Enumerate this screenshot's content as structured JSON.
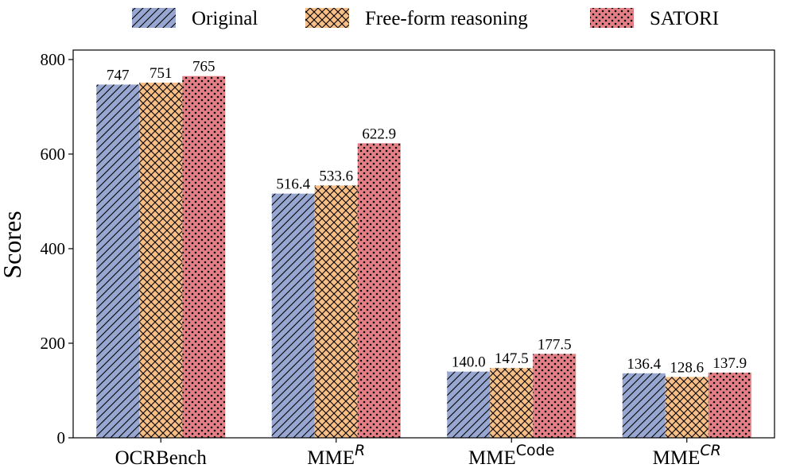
{
  "chart_data": {
    "type": "bar",
    "title": "",
    "xlabel": "",
    "ylabel": "Scores",
    "ylim": [
      0,
      820
    ],
    "yticks": [
      0,
      200,
      400,
      600,
      800
    ],
    "grid": false,
    "legend_position": "top",
    "categories": [
      {
        "base": "OCRBench",
        "sup": "",
        "sup_style": ""
      },
      {
        "base": "MME",
        "sup": "R",
        "sup_style": "italic"
      },
      {
        "base": "MME",
        "sup": "Code",
        "sup_style": "sans"
      },
      {
        "base": "MME",
        "sup": "CR",
        "sup_style": "italic"
      }
    ],
    "series": [
      {
        "name": "Original",
        "color": "#97a7d2",
        "pattern": "diagonal-hatch",
        "values": [
          747,
          516.4,
          140.0,
          136.4
        ],
        "labels": [
          "747",
          "516.4",
          "140.0",
          "136.4"
        ]
      },
      {
        "name": "Free-form reasoning",
        "color": "#f7bf85",
        "pattern": "cross-hatch",
        "values": [
          751,
          533.6,
          147.5,
          128.6
        ],
        "labels": [
          "751",
          "533.6",
          "147.5",
          "128.6"
        ]
      },
      {
        "name": "SATORI",
        "color": "#e47f85",
        "pattern": "dots",
        "values": [
          765,
          622.9,
          177.5,
          137.9
        ],
        "labels": [
          "765",
          "622.9",
          "177.5",
          "137.9"
        ]
      }
    ]
  }
}
